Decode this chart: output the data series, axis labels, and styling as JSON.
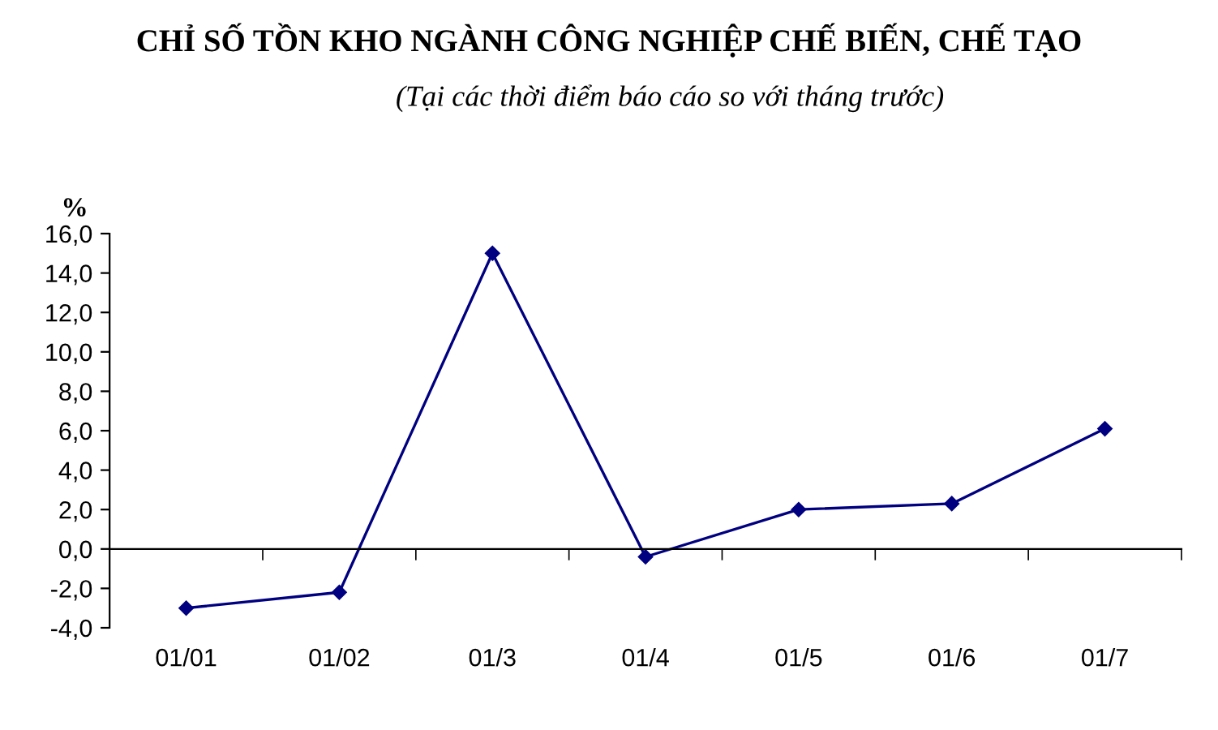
{
  "chart_data": {
    "type": "line",
    "title": "CHỈ SỐ TỒN KHO NGÀNH CÔNG NGHIỆP CHẾ BIẾN, CHẾ TẠO",
    "subtitle": "(Tại các thời điểm báo cáo so với tháng trước)",
    "ylabel": "%",
    "categories": [
      "01/01",
      "01/02",
      "01/3",
      "01/4",
      "01/5",
      "01/6",
      "01/7"
    ],
    "series": [
      {
        "color": "#000080",
        "values": [
          -3.0,
          -2.2,
          15.0,
          -0.4,
          2.0,
          2.3,
          6.1
        ]
      }
    ],
    "ylim": [
      -4,
      16
    ],
    "yticks": [
      {
        "value": -4,
        "label": "-4,0"
      },
      {
        "value": -2,
        "label": "-2,0"
      },
      {
        "value": 0,
        "label": "0,0"
      },
      {
        "value": 2,
        "label": "2,0"
      },
      {
        "value": 4,
        "label": "4,0"
      },
      {
        "value": 6,
        "label": "6,0"
      },
      {
        "value": 8,
        "label": "8,0"
      },
      {
        "value": 10,
        "label": "10,0"
      },
      {
        "value": 12,
        "label": "12,0"
      },
      {
        "value": 14,
        "label": "14,0"
      },
      {
        "value": 16,
        "label": "16,0"
      }
    ],
    "marker": "diamond",
    "line_style": "solid",
    "legend": false
  }
}
